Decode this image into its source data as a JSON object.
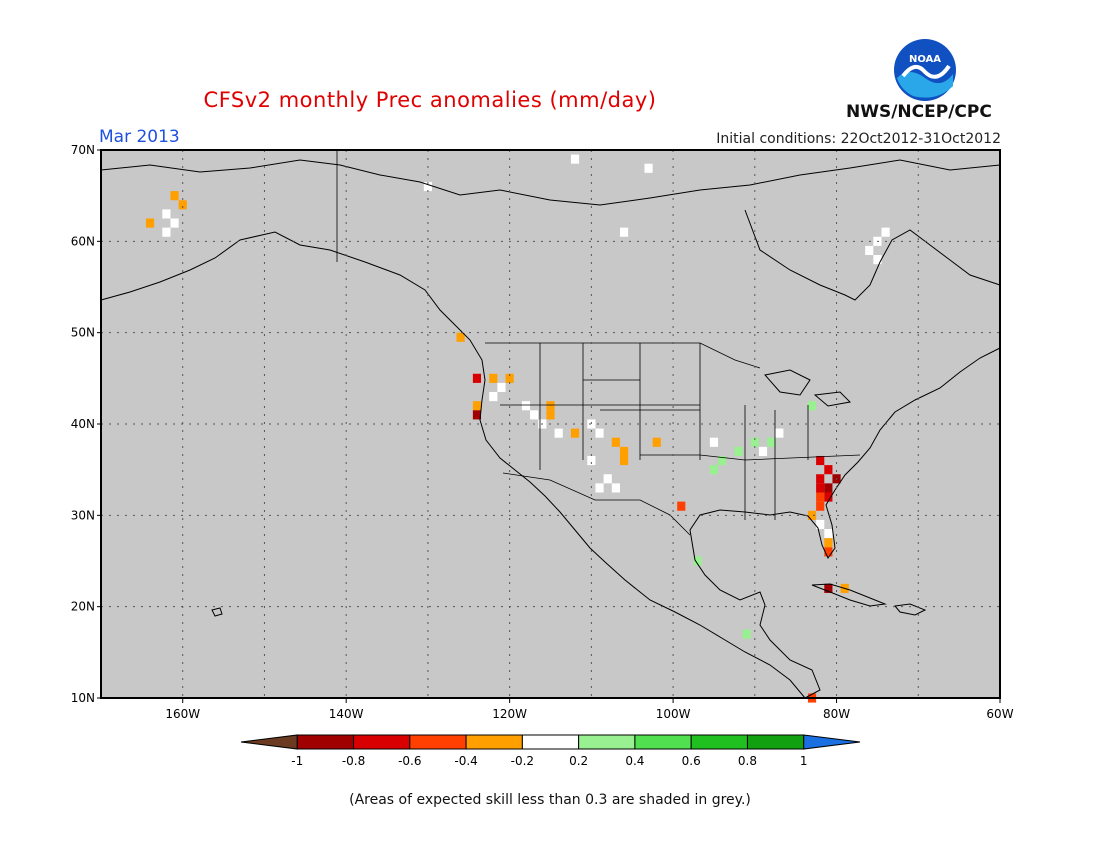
{
  "title": "CFSv2 monthly Prec anomalies (mm/day)",
  "valid_month": "Mar 2013",
  "initial_conditions": "Initial conditions: 22Oct2012-31Oct2012",
  "agency": "NWS/NCEP/CPC",
  "logo_text": "NOAA",
  "footnote": "(Areas of expected skill less than 0.3 are shaded in grey.)",
  "colors": {
    "title": "#e00000",
    "month": "#2050e0",
    "grey_mask": "#c8c8c8",
    "coast": "#000000",
    "grid": "#555555"
  },
  "lat_labels": [
    "10N",
    "20N",
    "30N",
    "40N",
    "50N",
    "60N",
    "70N"
  ],
  "lon_labels": [
    "160W",
    "140W",
    "120W",
    "100W",
    "80W",
    "60W"
  ],
  "legend": {
    "ticks": [
      "-1",
      "-0.8",
      "-0.6",
      "-0.4",
      "-0.2",
      "0.2",
      "0.4",
      "0.6",
      "0.8",
      "1"
    ],
    "colors": [
      "#6b3a20",
      "#a00000",
      "#d80000",
      "#ff4000",
      "#ff9f00",
      "#ffffff",
      "#98f090",
      "#50e050",
      "#20c020",
      "#10a010",
      "#1a70e0"
    ]
  },
  "anomaly_cells": [
    {
      "lat": 65,
      "lon": -161,
      "v": -0.3
    },
    {
      "lat": 64,
      "lon": -160,
      "v": -0.3
    },
    {
      "lat": 62,
      "lon": -164,
      "v": -0.3
    },
    {
      "lat": 63,
      "lon": -162,
      "v": 0
    },
    {
      "lat": 62,
      "lon": -161,
      "v": 0
    },
    {
      "lat": 61,
      "lon": -162,
      "v": 0
    },
    {
      "lat": 69,
      "lon": -112,
      "v": 0
    },
    {
      "lat": 68,
      "lon": -103,
      "v": 0
    },
    {
      "lat": 66,
      "lon": -130,
      "v": 0
    },
    {
      "lat": 60,
      "lon": -75,
      "v": 0
    },
    {
      "lat": 61,
      "lon": -74,
      "v": 0
    },
    {
      "lat": 59,
      "lon": -76,
      "v": 0
    },
    {
      "lat": 58,
      "lon": -75,
      "v": 0
    },
    {
      "lat": 61,
      "lon": -106,
      "v": 0
    },
    {
      "lat": 49.5,
      "lon": -126,
      "v": -0.3
    },
    {
      "lat": 45,
      "lon": -124,
      "v": -0.7
    },
    {
      "lat": 45,
      "lon": -122,
      "v": -0.3
    },
    {
      "lat": 45,
      "lon": -120,
      "v": -0.3
    },
    {
      "lat": 42,
      "lon": -124,
      "v": -0.3
    },
    {
      "lat": 41,
      "lon": -124,
      "v": -0.9
    },
    {
      "lat": 44,
      "lon": -121,
      "v": 0
    },
    {
      "lat": 43,
      "lon": -122,
      "v": 0
    },
    {
      "lat": 42,
      "lon": -118,
      "v": 0
    },
    {
      "lat": 42,
      "lon": -115,
      "v": -0.3
    },
    {
      "lat": 41,
      "lon": -115,
      "v": -0.3
    },
    {
      "lat": 41,
      "lon": -117,
      "v": 0
    },
    {
      "lat": 40,
      "lon": -116,
      "v": 0
    },
    {
      "lat": 39,
      "lon": -114,
      "v": 0
    },
    {
      "lat": 39,
      "lon": -112,
      "v": -0.3
    },
    {
      "lat": 38,
      "lon": -107,
      "v": -0.3
    },
    {
      "lat": 37,
      "lon": -106,
      "v": -0.3
    },
    {
      "lat": 36,
      "lon": -106,
      "v": -0.3
    },
    {
      "lat": 38,
      "lon": -102,
      "v": -0.3
    },
    {
      "lat": 40,
      "lon": -110,
      "v": 0
    },
    {
      "lat": 39,
      "lon": -109,
      "v": 0
    },
    {
      "lat": 36,
      "lon": -110,
      "v": 0
    },
    {
      "lat": 34,
      "lon": -108,
      "v": 0
    },
    {
      "lat": 33,
      "lon": -107,
      "v": 0
    },
    {
      "lat": 33,
      "lon": -109,
      "v": 0
    },
    {
      "lat": 31,
      "lon": -99,
      "v": -0.5
    },
    {
      "lat": 37,
      "lon": -92,
      "v": 0.3
    },
    {
      "lat": 38,
      "lon": -90,
      "v": 0.3
    },
    {
      "lat": 38,
      "lon": -88,
      "v": 0.3
    },
    {
      "lat": 36,
      "lon": -94,
      "v": 0.3
    },
    {
      "lat": 35,
      "lon": -95,
      "v": 0.3
    },
    {
      "lat": 42,
      "lon": -83,
      "v": 0.3
    },
    {
      "lat": 37,
      "lon": -89,
      "v": 0
    },
    {
      "lat": 38,
      "lon": -95,
      "v": 0
    },
    {
      "lat": 39,
      "lon": -87,
      "v": 0
    },
    {
      "lat": 36,
      "lon": -82,
      "v": -0.7
    },
    {
      "lat": 35,
      "lon": -81,
      "v": -0.7
    },
    {
      "lat": 34,
      "lon": -82,
      "v": -0.7
    },
    {
      "lat": 34,
      "lon": -80,
      "v": -0.9
    },
    {
      "lat": 33,
      "lon": -82,
      "v": -0.7
    },
    {
      "lat": 33,
      "lon": -81,
      "v": -0.9
    },
    {
      "lat": 32,
      "lon": -82,
      "v": -0.5
    },
    {
      "lat": 32,
      "lon": -81,
      "v": -0.7
    },
    {
      "lat": 31,
      "lon": -82,
      "v": -0.5
    },
    {
      "lat": 30,
      "lon": -83,
      "v": -0.3
    },
    {
      "lat": 29,
      "lon": -82,
      "v": 0
    },
    {
      "lat": 28,
      "lon": -81,
      "v": 0
    },
    {
      "lat": 27,
      "lon": -81,
      "v": -0.3
    },
    {
      "lat": 26,
      "lon": -81,
      "v": -0.5
    },
    {
      "lat": 25,
      "lon": -97,
      "v": 0.3
    },
    {
      "lat": 22,
      "lon": -81,
      "v": -0.9
    },
    {
      "lat": 22,
      "lon": -79,
      "v": -0.3
    },
    {
      "lat": 17,
      "lon": -91,
      "v": 0.3
    },
    {
      "lat": 10,
      "lon": -83,
      "v": -0.5
    }
  ]
}
